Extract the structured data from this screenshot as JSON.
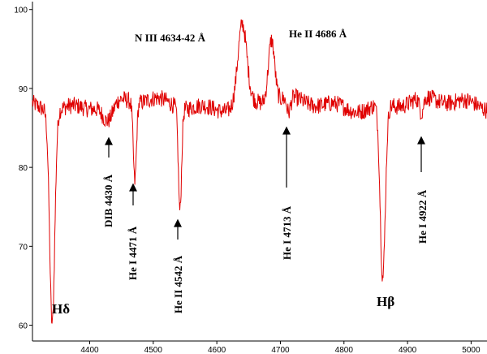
{
  "chart_data": {
    "type": "line",
    "title": "",
    "xlabel": "",
    "ylabel": "",
    "xlim": [
      4310,
      5025
    ],
    "ylim": [
      58,
      101
    ],
    "grid": false,
    "legend": "none",
    "line_color": "#e00000",
    "x_ticks": [
      "4400",
      "4500",
      "4600",
      "4700",
      "4800",
      "4900",
      "5000"
    ],
    "y_ticks": [
      "60",
      "70",
      "80",
      "90",
      "100"
    ],
    "continuum": 88,
    "features": [
      {
        "center": 4341,
        "depth": -27,
        "width": 4
      },
      {
        "center": 4429,
        "depth": -2.5,
        "width": 8
      },
      {
        "center": 4471,
        "depth": -10,
        "width": 2.5
      },
      {
        "center": 4542,
        "depth": -13,
        "width": 2.5
      },
      {
        "center": 4640,
        "depth": 10,
        "width": 7
      },
      {
        "center": 4686,
        "depth": 8,
        "width": 5
      },
      {
        "center": 4713,
        "depth": -2,
        "width": 3
      },
      {
        "center": 4861,
        "depth": -22,
        "width": 4
      },
      {
        "center": 4922,
        "depth": -2,
        "width": 3
      }
    ],
    "annotations": [
      {
        "key": "niii",
        "text": "N III 4634-42 Å"
      },
      {
        "key": "heii4686",
        "text": "He II 4686 Å"
      },
      {
        "key": "dib",
        "text": "DIB 4430 Å"
      },
      {
        "key": "hei4471",
        "text": "He I 4471 Å"
      },
      {
        "key": "heii4542",
        "text": "He II 4542 Å"
      },
      {
        "key": "hei4713",
        "text": "He I 4713 Å"
      },
      {
        "key": "hei4922",
        "text": "He I 4922 Å"
      },
      {
        "key": "hdelta",
        "text": "Hδ"
      },
      {
        "key": "hbeta",
        "text": "Hβ"
      }
    ]
  }
}
